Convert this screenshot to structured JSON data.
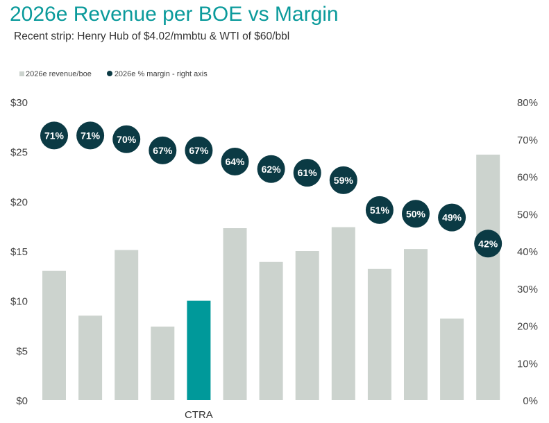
{
  "chart_data": {
    "type": "bar",
    "title": "2026e Revenue per BOE vs Margin",
    "subtitle": "Recent strip: Henry Hub of $4.02/mmbtu & WTI of $60/bbl",
    "categories": [
      "",
      "",
      "",
      "",
      "CTRA",
      "",
      "",
      "",
      "",
      "",
      "",
      "",
      ""
    ],
    "series": [
      {
        "name": "2026e revenue/boe",
        "type": "bar",
        "axis": "left",
        "values": [
          13.0,
          8.5,
          15.1,
          7.4,
          10.0,
          17.3,
          13.9,
          15.0,
          17.4,
          13.2,
          15.2,
          8.2,
          24.7
        ]
      },
      {
        "name": "2026e % margin - right axis",
        "type": "scatter",
        "axis": "right",
        "values": [
          71,
          71,
          70,
          67,
          67,
          64,
          62,
          61,
          59,
          51,
          50,
          49,
          42
        ],
        "labels": [
          "71%",
          "71%",
          "70%",
          "67%",
          "67%",
          "64%",
          "62%",
          "61%",
          "59%",
          "51%",
          "50%",
          "49%",
          "42%"
        ]
      }
    ],
    "highlight_index": 4,
    "y_left": {
      "ylim": [
        0,
        30
      ],
      "ticks": [
        "$0",
        "$5",
        "$10",
        "$15",
        "$20",
        "$25",
        "$30"
      ]
    },
    "y_right": {
      "ylim": [
        0,
        80
      ],
      "ticks": [
        "0%",
        "10%",
        "20%",
        "30%",
        "40%",
        "50%",
        "60%",
        "70%",
        "80%"
      ]
    },
    "legend_position": "top-left",
    "grid": false,
    "colors": {
      "bar": "#ccd3ce",
      "highlight": "#00999a",
      "dot": "#0b3a44",
      "dot_text": "#ffffff"
    }
  }
}
